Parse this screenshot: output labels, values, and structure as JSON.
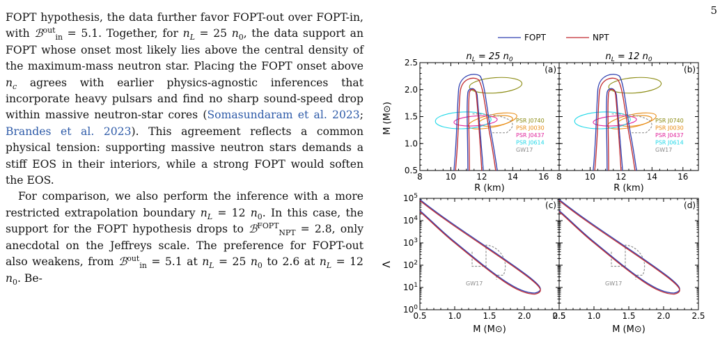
{
  "page": {
    "number": "5"
  },
  "text": {
    "p1": [
      {
        "t": "FOPT hypothesis, the data further favor FOPT-out over FOPT-in, with "
      },
      {
        "t": "ℬ",
        "i": true
      },
      {
        "t": "out",
        "sup": true
      },
      {
        "t": "in",
        "sub": true
      },
      {
        "t": " = 5.1. Together, for "
      },
      {
        "t": "n",
        "i": true
      },
      {
        "t": "L",
        "sub": true,
        "i": true
      },
      {
        "t": " = 25 "
      },
      {
        "t": "n",
        "i": true
      },
      {
        "t": "0",
        "sub": true
      },
      {
        "t": ", the data support an FOPT whose onset most likely lies above the central density of the maximum-mass neutron star. Placing the FOPT onset above "
      },
      {
        "t": "n",
        "i": true
      },
      {
        "t": "c",
        "sub": true,
        "i": true
      },
      {
        "t": " agrees with earlier physics-agnostic inferences that incorporate heavy pulsars and find no sharp sound-speed drop within massive neutron-star cores ("
      },
      {
        "t": "Somasundaram et al. 2023",
        "cite": true
      },
      {
        "t": "; "
      },
      {
        "t": "Brandes et al. 2023",
        "cite": true
      },
      {
        "t": "). This agreement reflects a common physical tension: supporting massive neutron stars demands a stiff EOS in their interiors, while a strong FOPT would soften the EOS."
      }
    ],
    "p2": [
      {
        "t": "For comparison, we also perform the inference with a more restricted extrapolation boundary "
      },
      {
        "t": "n",
        "i": true
      },
      {
        "t": "L",
        "sub": true,
        "i": true
      },
      {
        "t": " = 12 "
      },
      {
        "t": "n",
        "i": true
      },
      {
        "t": "0",
        "sub": true
      },
      {
        "t": ". In this case, the support for the FOPT hypothesis drops to "
      },
      {
        "t": "ℬ",
        "i": true
      },
      {
        "t": "FOPT",
        "sup": true
      },
      {
        "t": "NPT",
        "sub": true
      },
      {
        "t": " = 2.8, only anecdotal on the Jeffreys scale. The preference for FOPT-out also weakens, from "
      },
      {
        "t": "ℬ",
        "i": true
      },
      {
        "t": "out",
        "sup": true
      },
      {
        "t": "in",
        "sub": true
      },
      {
        "t": " = 5.1 at "
      },
      {
        "t": "n",
        "i": true
      },
      {
        "t": "L",
        "sub": true,
        "i": true
      },
      {
        "t": " = 25 "
      },
      {
        "t": "n",
        "i": true
      },
      {
        "t": "0",
        "sub": true
      },
      {
        "t": " to 2.6 at "
      },
      {
        "t": "n",
        "i": true
      },
      {
        "t": "L",
        "sub": true,
        "i": true
      },
      {
        "t": " = 12 "
      },
      {
        "t": "n",
        "i": true
      },
      {
        "t": "0",
        "sub": true
      },
      {
        "t": ". Be-"
      }
    ]
  },
  "figure": {
    "legend": [
      "FOPT",
      "NPT"
    ],
    "colors": {
      "FOPT": "#2d3eb0",
      "NPT": "#c0282d"
    },
    "col_titles": [
      "n_L = 25 n_0",
      "n_L = 12 n_0"
    ],
    "panel_labels": [
      "(a)",
      "(b)",
      "(c)",
      "(d)"
    ],
    "mr": {
      "xlabel": "R (km)",
      "ylabel": "M (M⊙)",
      "xticks": [
        "8",
        "10",
        "12",
        "14",
        "16"
      ],
      "yticks": [
        "0.5",
        "1.0",
        "1.5",
        "2.0",
        "2.5"
      ],
      "xlim": [
        8,
        17
      ],
      "ylim": [
        0.5,
        2.5
      ],
      "observations": [
        {
          "name": "PSR J0740",
          "color": "#8a8a10"
        },
        {
          "name": "PSR J0030",
          "color": "#e88a10"
        },
        {
          "name": "PSR J0437",
          "color": "#e0209a"
        },
        {
          "name": "PSR J0614",
          "color": "#20d8e8"
        },
        {
          "name": "GW17",
          "color": "#888888"
        }
      ]
    },
    "ml": {
      "xlabel": "M (M⊙)",
      "ylabel": "Λ",
      "xticks": [
        "0.5",
        "1.0",
        "1.5",
        "2.0",
        "2.5"
      ],
      "yticks": [
        "0",
        "1",
        "2",
        "3",
        "4",
        "5"
      ],
      "xlim": [
        0.5,
        2.5
      ],
      "ylim_log10": [
        0,
        5
      ],
      "gw_label": "GW17"
    }
  }
}
